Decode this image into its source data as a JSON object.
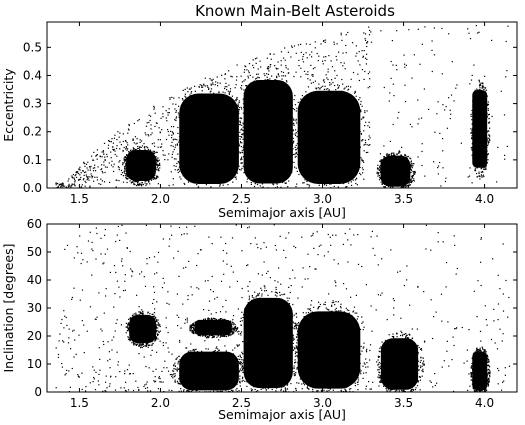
{
  "chart_data": [
    {
      "type": "scatter",
      "title": "Known Main-Belt Asteroids",
      "xlabel": "Semimajor axis [AU]",
      "ylabel": "Eccentricity",
      "xlim": [
        1.3,
        4.2
      ],
      "ylim": [
        0.0,
        0.59
      ],
      "xticks": [
        1.5,
        2.0,
        2.5,
        3.0,
        3.5,
        4.0
      ],
      "xtick_labels": [
        "1.5",
        "2.0",
        "2.5",
        "3.0",
        "3.5",
        "4.0"
      ],
      "yticks": [
        0.0,
        0.1,
        0.2,
        0.3,
        0.4,
        0.5
      ],
      "ytick_labels": [
        "0.0",
        "0.1",
        "0.2",
        "0.3",
        "0.4",
        "0.5"
      ],
      "grid": false,
      "marker_color": "#000000",
      "dense_clusters": [
        {
          "x_range": [
            1.78,
            1.98
          ],
          "y_range": [
            0.02,
            0.14
          ]
        },
        {
          "x_range": [
            2.1,
            2.5
          ],
          "y_range": [
            0.0,
            0.35
          ]
        },
        {
          "x_range": [
            2.5,
            2.83
          ],
          "y_range": [
            0.0,
            0.4
          ]
        },
        {
          "x_range": [
            2.83,
            3.25
          ],
          "y_range": [
            0.0,
            0.36
          ]
        },
        {
          "x_range": [
            3.35,
            3.55
          ],
          "y_range": [
            0.0,
            0.12
          ]
        },
        {
          "x_range": [
            3.92,
            4.02
          ],
          "y_range": [
            0.06,
            0.36
          ]
        }
      ]
    },
    {
      "type": "scatter",
      "xlabel": "Semimajor axis [AU]",
      "ylabel": "Inclination [degrees]",
      "xlim": [
        1.3,
        4.2
      ],
      "ylim": [
        0,
        60
      ],
      "xticks": [
        1.5,
        2.0,
        2.5,
        3.0,
        3.5,
        4.0
      ],
      "xtick_labels": [
        "1.5",
        "2.0",
        "2.5",
        "3.0",
        "3.5",
        "4.0"
      ],
      "yticks": [
        0,
        10,
        20,
        30,
        40,
        50,
        60
      ],
      "ytick_labels": [
        "0",
        "10",
        "20",
        "30",
        "40",
        "50",
        "60"
      ],
      "grid": false,
      "marker_color": "#000000",
      "dense_clusters": [
        {
          "x_range": [
            1.8,
            1.98
          ],
          "y_range": [
            17,
            28
          ]
        },
        {
          "x_range": [
            2.2,
            2.45
          ],
          "y_range": [
            20,
            26
          ]
        },
        {
          "x_range": [
            2.1,
            2.5
          ],
          "y_range": [
            0,
            15
          ]
        },
        {
          "x_range": [
            2.5,
            2.83
          ],
          "y_range": [
            0,
            35
          ]
        },
        {
          "x_range": [
            2.83,
            3.25
          ],
          "y_range": [
            0,
            30
          ]
        },
        {
          "x_range": [
            3.35,
            3.6
          ],
          "y_range": [
            0,
            20
          ]
        },
        {
          "x_range": [
            3.92,
            4.02
          ],
          "y_range": [
            0,
            15
          ]
        }
      ]
    }
  ]
}
